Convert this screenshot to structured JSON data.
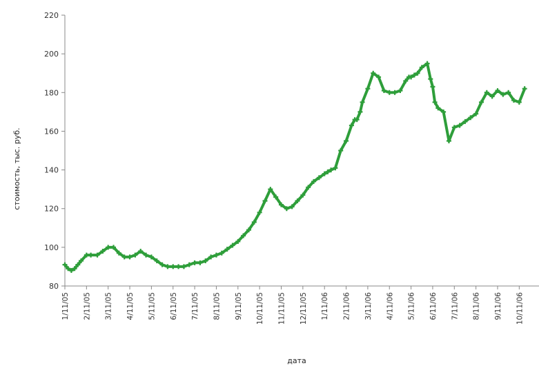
{
  "chart_data": {
    "type": "line",
    "xlabel": "дата",
    "ylabel": "стоимость, тыс. руб.",
    "ylim": [
      80,
      220
    ],
    "yticks": [
      80,
      100,
      120,
      140,
      160,
      180,
      200,
      220
    ],
    "xticks": [
      "1/11/05",
      "2/11/05",
      "3/11/05",
      "4/11/05",
      "5/11/05",
      "6/11/05",
      "7/11/05",
      "8/11/05",
      "9/11/05",
      "10/11/05",
      "11/11/05",
      "12/11/05",
      "1/11/06",
      "2/11/06",
      "3/11/06",
      "4/11/06",
      "5/11/06",
      "6/11/06",
      "7/11/06",
      "8/11/06",
      "9/11/06",
      "10/11/06"
    ],
    "series_color": "#2e9e3a",
    "grid": false,
    "series": [
      {
        "x": [
          0,
          0.15,
          0.3,
          0.45,
          0.6,
          0.75,
          1.0,
          1.2,
          1.5,
          1.75,
          2.0,
          2.25,
          2.5,
          2.75,
          3.0,
          3.25,
          3.5,
          3.75,
          4.0,
          4.25,
          4.5,
          4.75,
          5.0,
          5.25,
          5.5,
          5.75,
          6.0,
          6.25,
          6.5,
          6.75,
          7.0,
          7.25,
          7.5,
          7.75,
          8.0,
          8.25,
          8.5,
          8.75,
          9.0,
          9.25,
          9.5,
          9.75,
          10.0,
          10.25,
          10.5,
          10.75,
          11.0,
          11.25,
          11.5,
          11.75,
          12.0,
          12.15,
          12.3,
          12.5,
          12.75,
          13.0,
          13.25,
          13.4,
          13.5,
          13.65,
          13.75,
          14.0,
          14.25,
          14.5,
          14.75,
          15.0,
          15.25,
          15.5,
          15.75,
          15.9,
          16.0,
          16.15,
          16.3,
          16.5,
          16.75,
          16.9,
          17.0,
          17.1,
          17.25,
          17.5,
          17.75,
          18.0,
          18.25,
          18.5,
          18.75,
          19.0,
          19.25,
          19.5,
          19.75,
          20.0,
          20.25,
          20.5,
          20.75,
          21.0,
          21.25
        ],
        "y": [
          91,
          89,
          88,
          89,
          91,
          93,
          96,
          96,
          96,
          98,
          100,
          100,
          97,
          95,
          95,
          96,
          98,
          96,
          95,
          93,
          91,
          90,
          90,
          90,
          90,
          91,
          92,
          92,
          93,
          95,
          96,
          97,
          99,
          101,
          103,
          106,
          109,
          113,
          118,
          124,
          130,
          126,
          122,
          120,
          121,
          124,
          127,
          131,
          134,
          136,
          138,
          139,
          140,
          141,
          150,
          155,
          163,
          166,
          166,
          170,
          175,
          182,
          190,
          188,
          181,
          180,
          180,
          181,
          186,
          188,
          188,
          189,
          190,
          193,
          195,
          187,
          183,
          175,
          172,
          170,
          155,
          162,
          163,
          165,
          167,
          169,
          175,
          180,
          178,
          181,
          179,
          180,
          176,
          175,
          182
        ]
      }
    ]
  }
}
